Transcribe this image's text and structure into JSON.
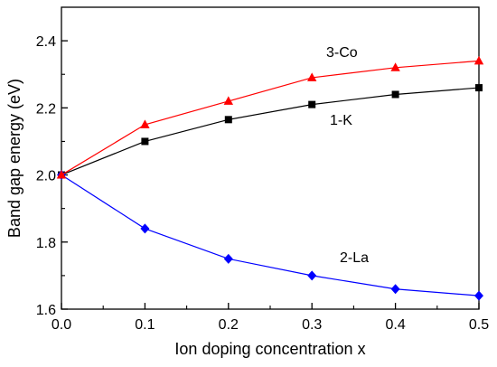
{
  "chart_data": {
    "type": "line",
    "xlabel": "Ion doping concentration x",
    "ylabel": "Band gap energy (eV)",
    "xlim": [
      0.0,
      0.5
    ],
    "ylim": [
      1.6,
      2.5
    ],
    "x_ticks": [
      "0.0",
      "0.1",
      "0.2",
      "0.3",
      "0.4",
      "0.5"
    ],
    "y_ticks": [
      "1.6",
      "1.8",
      "2.0",
      "2.2",
      "2.4"
    ],
    "grid": false,
    "legend": "none (series labelled inline)",
    "x": [
      0.0,
      0.1,
      0.2,
      0.3,
      0.4,
      0.5
    ],
    "series": [
      {
        "name": "1-K",
        "marker": "square",
        "color": "#000000",
        "values": [
          2.0,
          2.1,
          2.165,
          2.21,
          2.24,
          2.26
        ]
      },
      {
        "name": "2-La",
        "marker": "diamond",
        "color": "#0000ff",
        "values": [
          2.0,
          1.84,
          1.75,
          1.7,
          1.66,
          1.64
        ]
      },
      {
        "name": "3-Co",
        "marker": "triangle",
        "color": "#ff0000",
        "values": [
          2.0,
          2.15,
          2.22,
          2.29,
          2.32,
          2.34
        ]
      }
    ]
  }
}
